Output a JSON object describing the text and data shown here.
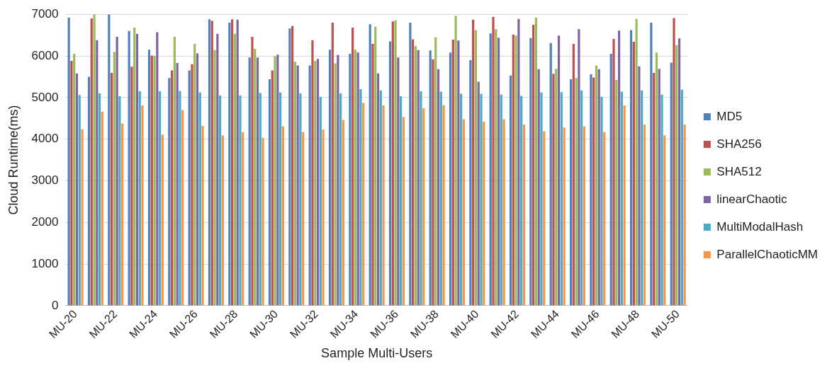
{
  "chart_data": {
    "type": "bar",
    "xlabel": "Sample Multi-Users",
    "ylabel": "Cloud Runtime(ms)",
    "categories": [
      "MU-20",
      null,
      "MU-22",
      null,
      "MU-24",
      null,
      "MU-26",
      null,
      "MU-28",
      null,
      "MU-30",
      null,
      "MU-32",
      null,
      "MU-34",
      null,
      "MU-36",
      null,
      "MU-38",
      null,
      "MU-40",
      null,
      "MU-42",
      null,
      "MU-44",
      null,
      "MU-46",
      null,
      "MU-48",
      null,
      "MU-50"
    ],
    "series": [
      {
        "name": "MD5",
        "color": "#4f81bd",
        "values": [
          6920,
          5500,
          7000,
          6600,
          6150,
          5470,
          5650,
          6880,
          6800,
          5960,
          5440,
          6660,
          5770,
          6150,
          6050,
          6760,
          6350,
          6800,
          6130,
          6080,
          5900,
          6540,
          5530,
          6430,
          6310,
          5440,
          5560,
          6050,
          6620,
          6800,
          5840
        ]
      },
      {
        "name": "SHA256",
        "color": "#c0504d",
        "values": [
          5880,
          6900,
          5590,
          5740,
          6010,
          5650,
          5800,
          6840,
          6880,
          6460,
          5650,
          6720,
          6380,
          6800,
          6680,
          6290,
          6830,
          6400,
          5920,
          6390,
          6870,
          6940,
          6510,
          6750,
          5570,
          6290,
          5480,
          6410,
          6340,
          5590,
          6910
        ]
      },
      {
        "name": "SHA512",
        "color": "#9bbb59",
        "values": [
          6050,
          7000,
          6100,
          6680,
          6000,
          6460,
          6290,
          6140,
          6530,
          6170,
          5990,
          5860,
          5880,
          5820,
          6150,
          6700,
          6860,
          6240,
          6450,
          6960,
          6620,
          6640,
          6490,
          6920,
          5690,
          5470,
          5770,
          5420,
          6890,
          6080,
          6260
        ]
      },
      {
        "name": "linearChaotic",
        "color": "#8064a2",
        "values": [
          5580,
          6380,
          6460,
          6530,
          6570,
          5830,
          6060,
          6530,
          6870,
          5960,
          6030,
          5770,
          5930,
          6020,
          6080,
          5580,
          5960,
          6140,
          5680,
          6370,
          5380,
          6440,
          6890,
          5680,
          6490,
          6640,
          5680,
          6610,
          5750,
          5690,
          6420
        ]
      },
      {
        "name": "MultiModalHash",
        "color": "#4bacc6",
        "values": [
          5060,
          5100,
          5030,
          5150,
          5150,
          5160,
          5120,
          5050,
          5050,
          5110,
          5120,
          5100,
          5020,
          5100,
          5200,
          5170,
          5030,
          5150,
          5140,
          5090,
          5090,
          5070,
          5040,
          5120,
          5130,
          5170,
          5020,
          5140,
          5170,
          5070,
          5190
        ]
      },
      {
        "name": "ParallelChaoticMM",
        "color": "#f79646",
        "values": [
          4240,
          4660,
          4370,
          4810,
          4110,
          4700,
          4320,
          4090,
          4170,
          4030,
          4310,
          4170,
          4230,
          4460,
          4870,
          4810,
          4530,
          4740,
          4820,
          4480,
          4420,
          4480,
          4350,
          4190,
          4280,
          4310,
          4170,
          4810,
          4350,
          4090,
          4350
        ]
      }
    ],
    "ylim": [
      0,
      7000
    ],
    "yticks": [
      0,
      1000,
      2000,
      3000,
      4000,
      5000,
      6000,
      7000
    ],
    "grid": "y",
    "legend": "right"
  }
}
